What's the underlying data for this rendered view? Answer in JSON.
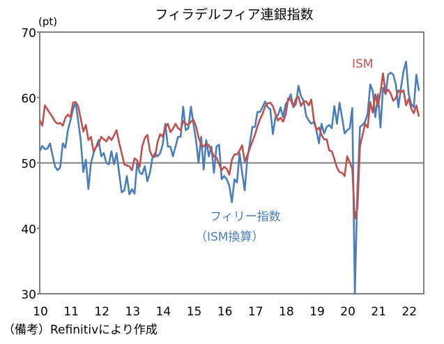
{
  "chart_data": {
    "type": "line",
    "title": "フィラデルフィア連銀指数",
    "ylabel": "(pt)",
    "ylim": [
      30,
      70
    ],
    "yticks": [
      "30",
      "40",
      "50",
      "60",
      "70"
    ],
    "xticks": [
      "10",
      "11",
      "12",
      "13",
      "14",
      "15",
      "16",
      "17",
      "18",
      "19",
      "20",
      "21",
      "22"
    ],
    "x_start": "2010-01",
    "x_frequency": "monthly",
    "reference_line": 50,
    "grid": false,
    "note": "（備考）Refinitivにより作成",
    "series": [
      {
        "name": "フィリー指数",
        "name_sub": "（ISM換算）",
        "color": "#4a7ebb",
        "values": [
          51.8,
          52.6,
          52.1,
          52.2,
          53.0,
          51.2,
          49.4,
          48.9,
          49.3,
          53.0,
          52.3,
          55.0,
          56.5,
          58.2,
          59.2,
          56.5,
          53.5,
          48.6,
          50.5,
          46.0,
          50.0,
          51.5,
          52.5,
          53.5,
          51.0,
          51.5,
          50.0,
          49.8,
          51.8,
          49.8,
          51.5,
          48.5,
          45.5,
          45.8,
          48.0,
          45.2,
          46.0,
          45.3,
          50.0,
          48.5,
          48.3,
          49.5,
          47.2,
          48.5,
          50.8,
          51.5,
          51.0,
          51.5,
          52.8,
          56.0,
          52.5,
          52.5,
          51.0,
          52.5,
          54.0,
          54.0,
          58.6,
          55.0,
          55.3,
          58.6,
          56.0,
          53.5,
          50.0,
          54.0,
          49.0,
          53.5,
          51.0,
          52.5,
          48.5,
          52.5,
          52.8,
          47.5,
          48.0,
          47.5,
          46.5,
          44.0,
          47.5,
          47.0,
          51.5,
          48.5,
          45.8,
          50.5,
          53.0,
          55.5,
          55.5,
          57.8,
          57.8,
          58.6,
          59.4,
          58.5,
          58.2,
          54.4,
          57.0,
          57.3,
          58.5,
          57.0,
          59.0,
          59.5,
          60.5,
          58.5,
          59.0,
          61.8,
          60.2,
          59.5,
          57.2,
          56.5,
          56.0,
          56.3,
          55.0,
          53.0,
          56.0,
          54.5,
          55.5,
          55.8,
          55.3,
          58.7,
          56.0,
          59.2,
          57.0,
          54.5,
          55.0,
          55.3,
          58.4,
          30.0,
          46.0,
          55.5,
          55.8,
          56.3,
          57.5,
          62.0,
          61.0,
          57.0,
          60.5,
          55.4,
          61.5,
          60.5,
          63.5,
          63.8,
          63.5,
          62.0,
          58.5,
          61.5,
          64.0,
          65.5,
          60.5,
          59.0,
          58.5,
          63.5,
          61.0
        ]
      },
      {
        "name": "ISM",
        "color": "#c0504d",
        "values": [
          56.5,
          55.7,
          58.8,
          58.2,
          57.6,
          57.0,
          56.3,
          56.0,
          56.1,
          55.7,
          56.9,
          57.4,
          57.0,
          59.2,
          59.3,
          58.7,
          56.8,
          54.8,
          55.8,
          53.5,
          54.0,
          51.8,
          52.4,
          52.9,
          54.0,
          53.6,
          53.3,
          54.0,
          53.5,
          54.2,
          55.0,
          53.1,
          51.5,
          49.8,
          49.6,
          49.5,
          48.9,
          50.7,
          50.4,
          49.4,
          52.5,
          53.8,
          54.3,
          51.8,
          51.0,
          50.9,
          53.2,
          54.4,
          54.0,
          55.4,
          56.0,
          54.7,
          55.2,
          56.0,
          55.3,
          55.0,
          56.4,
          56.0,
          55.8,
          56.3,
          56.6,
          55.6,
          53.9,
          52.8,
          52.5,
          53.0,
          52.7,
          51.9,
          51.0,
          50.8,
          49.8,
          48.9,
          49.4,
          49.1,
          48.2,
          50.5,
          51.3,
          51.3,
          51.9,
          52.7,
          50.2,
          51.1,
          52.2,
          53.3,
          54.3,
          55.6,
          56.7,
          57.5,
          58.7,
          59.1,
          59.2,
          58.7,
          57.5,
          56.5,
          56.9,
          56.3,
          57.4,
          59.9,
          59.6,
          58.6,
          59.8,
          60.1,
          58.7,
          59.4,
          59.4,
          58.8,
          59.7,
          56.6,
          55.0,
          55.4,
          54.3,
          53.6,
          53.6,
          51.9,
          51.8,
          50.6,
          49.3,
          48.6,
          48.5,
          48.0,
          51.0,
          50.1,
          49.1,
          41.5,
          43.1,
          52.6,
          54.2,
          56.0,
          55.4,
          59.3,
          57.7,
          60.5,
          58.7,
          60.8,
          63.7,
          60.7,
          61.2,
          60.6,
          59.5,
          59.9,
          61.1,
          60.8,
          61.1,
          58.8,
          59.8,
          58.3,
          57.6,
          58.8,
          57.1
        ]
      }
    ]
  }
}
